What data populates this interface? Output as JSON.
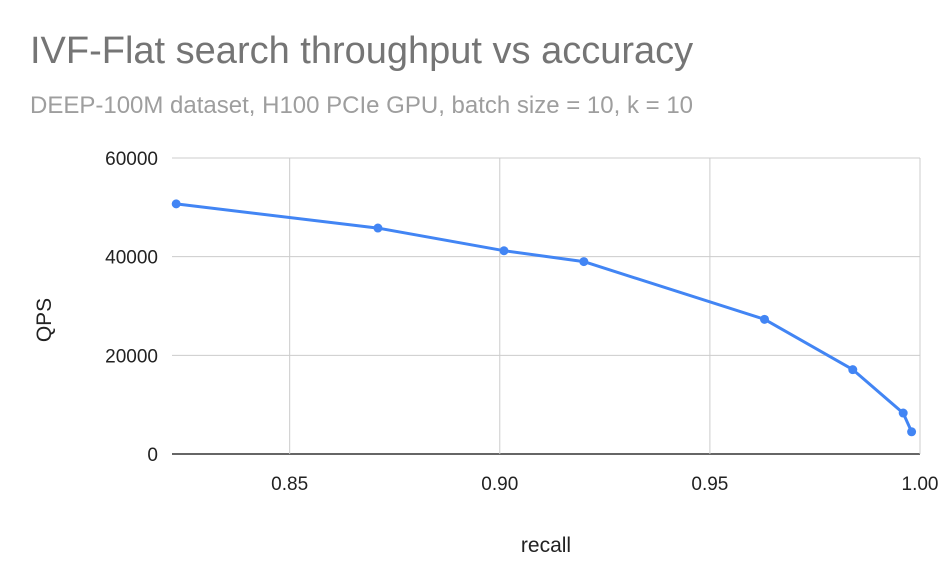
{
  "chart_data": {
    "type": "line",
    "title": "IVF-Flat search throughput vs accuracy",
    "subtitle": "DEEP-100M dataset, H100 PCIe GPU, batch size = 10, k = 10",
    "xlabel": "recall",
    "ylabel": "QPS",
    "xlim": [
      0.822,
      1.0
    ],
    "ylim": [
      0,
      60000
    ],
    "x_ticks": [
      "0.85",
      "0.90",
      "0.95",
      "1.00"
    ],
    "x_tick_values": [
      0.85,
      0.9,
      0.95,
      1.0
    ],
    "y_ticks": [
      "0",
      "20000",
      "40000",
      "60000"
    ],
    "y_tick_values": [
      0,
      20000,
      40000,
      60000
    ],
    "grid": true,
    "legend": "none",
    "series": [
      {
        "color": "#4285f4",
        "points": [
          {
            "x": 0.823,
            "y": 50700
          },
          {
            "x": 0.871,
            "y": 45800
          },
          {
            "x": 0.901,
            "y": 41200
          },
          {
            "x": 0.92,
            "y": 39000
          },
          {
            "x": 0.963,
            "y": 27300
          },
          {
            "x": 0.984,
            "y": 17100
          },
          {
            "x": 0.996,
            "y": 8300
          },
          {
            "x": 0.998,
            "y": 4500
          }
        ]
      }
    ]
  }
}
